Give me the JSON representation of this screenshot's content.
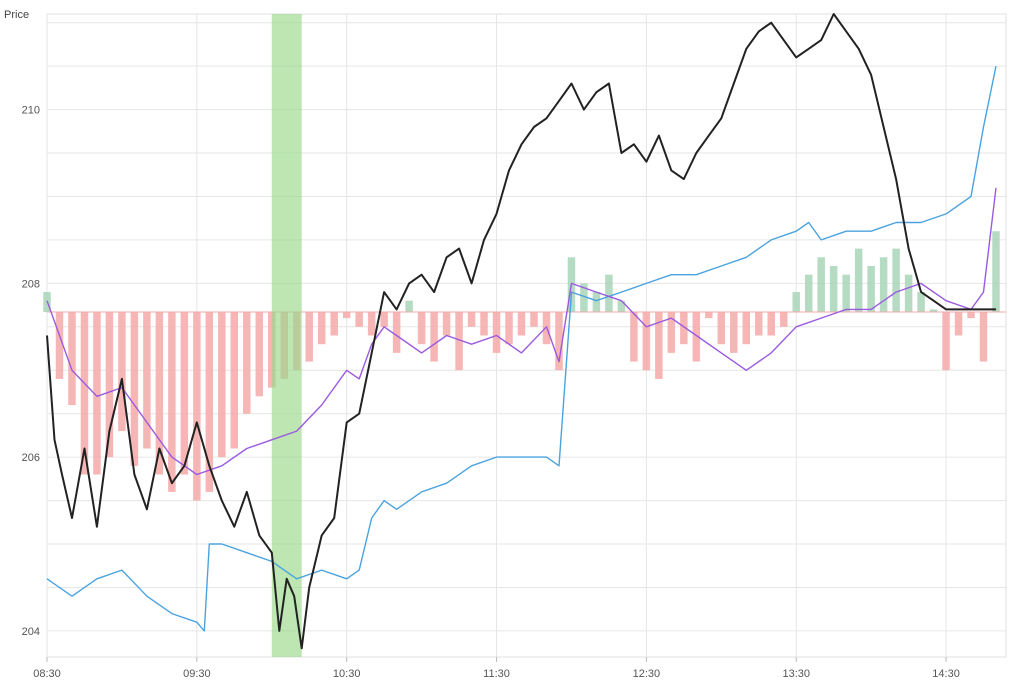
{
  "chart_data": {
    "type": "line",
    "ylabel": "Price",
    "ylim": [
      203.7,
      211.1
    ],
    "y_ticks": [
      204,
      206,
      208,
      210
    ],
    "x_ticks": [
      "08:30",
      "09:30",
      "10:30",
      "11:30",
      "12:30",
      "13:30",
      "14:30"
    ],
    "x_range_hours": [
      8.5,
      14.9
    ],
    "grid": true,
    "baseline": 207.67,
    "highlight_band": {
      "start": "10:00",
      "end": "10:12",
      "color": "#9ad88a"
    },
    "colors": {
      "price": "#222222",
      "blue": "#4aa3df",
      "purple": "#9b59e0",
      "bar_negative": "#f4a9a9",
      "bar_positive": "#a8d5b8"
    },
    "series": [
      {
        "key": "price",
        "x": [
          "08:30",
          "08:33",
          "08:36",
          "08:40",
          "08:45",
          "08:50",
          "08:55",
          "09:00",
          "09:05",
          "09:10",
          "09:15",
          "09:20",
          "09:25",
          "09:30",
          "09:35",
          "09:40",
          "09:45",
          "09:50",
          "09:55",
          "10:00",
          "10:03",
          "10:06",
          "10:09",
          "10:12",
          "10:15",
          "10:20",
          "10:25",
          "10:30",
          "10:35",
          "10:40",
          "10:45",
          "10:50",
          "10:55",
          "11:00",
          "11:05",
          "11:10",
          "11:15",
          "11:20",
          "11:25",
          "11:30",
          "11:35",
          "11:40",
          "11:45",
          "11:50",
          "11:55",
          "12:00",
          "12:05",
          "12:10",
          "12:15",
          "12:20",
          "12:25",
          "12:30",
          "12:35",
          "12:40",
          "12:45",
          "12:50",
          "12:55",
          "13:00",
          "13:05",
          "13:10",
          "13:15",
          "13:20",
          "13:25",
          "13:30",
          "13:35",
          "13:40",
          "13:45",
          "13:50",
          "13:55",
          "14:00",
          "14:05",
          "14:10",
          "14:15",
          "14:20",
          "14:25",
          "14:30",
          "14:35",
          "14:40",
          "14:42",
          "14:45",
          "14:48",
          "14:50"
        ],
        "y": [
          207.4,
          206.2,
          205.8,
          205.3,
          206.1,
          205.2,
          206.3,
          206.9,
          205.8,
          205.4,
          206.1,
          205.7,
          205.9,
          206.4,
          205.9,
          205.5,
          205.2,
          205.6,
          205.1,
          204.9,
          204.0,
          204.6,
          204.4,
          203.8,
          204.5,
          205.1,
          205.3,
          206.4,
          206.5,
          207.2,
          207.9,
          207.7,
          208.0,
          208.1,
          207.9,
          208.3,
          208.4,
          208.0,
          208.5,
          208.8,
          209.3,
          209.6,
          209.8,
          209.9,
          210.1,
          210.3,
          210.0,
          210.2,
          210.3,
          209.5,
          209.6,
          209.4,
          209.7,
          209.3,
          209.2,
          209.5,
          209.7,
          209.9,
          210.3,
          210.7,
          210.9,
          211.0,
          210.8,
          210.6,
          210.7,
          210.8,
          211.1,
          210.9,
          210.7,
          210.4,
          209.8,
          209.2,
          208.4,
          207.9,
          207.8,
          207.7,
          207.7,
          207.7,
          207.7,
          207.7,
          207.7,
          207.7
        ]
      },
      {
        "key": "blue",
        "x": [
          "08:30",
          "08:40",
          "08:50",
          "09:00",
          "09:10",
          "09:20",
          "09:30",
          "09:33",
          "09:35",
          "09:40",
          "09:50",
          "10:00",
          "10:10",
          "10:20",
          "10:30",
          "10:35",
          "10:40",
          "10:45",
          "10:50",
          "11:00",
          "11:10",
          "11:20",
          "11:30",
          "11:40",
          "11:50",
          "11:55",
          "12:00",
          "12:10",
          "12:20",
          "12:30",
          "12:40",
          "12:50",
          "13:00",
          "13:10",
          "13:20",
          "13:30",
          "13:35",
          "13:40",
          "13:50",
          "14:00",
          "14:10",
          "14:20",
          "14:30",
          "14:40",
          "14:45",
          "14:50"
        ],
        "y": [
          204.6,
          204.4,
          204.6,
          204.7,
          204.4,
          204.2,
          204.1,
          204.0,
          205.0,
          205.0,
          204.9,
          204.8,
          204.6,
          204.7,
          204.6,
          204.7,
          205.3,
          205.5,
          205.4,
          205.6,
          205.7,
          205.9,
          206.0,
          206.0,
          206.0,
          205.9,
          207.9,
          207.8,
          207.9,
          208.0,
          208.1,
          208.1,
          208.2,
          208.3,
          208.5,
          208.6,
          208.7,
          208.5,
          208.6,
          208.6,
          208.7,
          208.7,
          208.8,
          209.0,
          209.8,
          210.5
        ]
      },
      {
        "key": "purple",
        "x": [
          "08:30",
          "08:40",
          "08:50",
          "09:00",
          "09:10",
          "09:20",
          "09:30",
          "09:40",
          "09:50",
          "10:00",
          "10:10",
          "10:20",
          "10:30",
          "10:35",
          "10:40",
          "10:45",
          "10:50",
          "11:00",
          "11:10",
          "11:20",
          "11:30",
          "11:40",
          "11:50",
          "11:55",
          "12:00",
          "12:10",
          "12:20",
          "12:30",
          "12:40",
          "12:50",
          "13:00",
          "13:10",
          "13:20",
          "13:30",
          "13:40",
          "13:50",
          "14:00",
          "14:10",
          "14:20",
          "14:30",
          "14:40",
          "14:45",
          "14:50"
        ],
        "y": [
          207.8,
          207.0,
          206.7,
          206.8,
          206.4,
          206.0,
          205.8,
          205.9,
          206.1,
          206.2,
          206.3,
          206.6,
          207.0,
          206.9,
          207.3,
          207.5,
          207.4,
          207.2,
          207.4,
          207.3,
          207.4,
          207.2,
          207.5,
          207.1,
          208.0,
          207.9,
          207.8,
          207.5,
          207.6,
          207.4,
          207.2,
          207.0,
          207.2,
          207.5,
          207.6,
          207.7,
          207.7,
          207.9,
          208.0,
          207.8,
          207.7,
          207.9,
          209.1
        ]
      }
    ],
    "bars": {
      "x": [
        "08:30",
        "08:35",
        "08:40",
        "08:45",
        "08:50",
        "08:55",
        "09:00",
        "09:05",
        "09:10",
        "09:15",
        "09:20",
        "09:25",
        "09:30",
        "09:35",
        "09:40",
        "09:45",
        "09:50",
        "09:55",
        "10:00",
        "10:05",
        "10:10",
        "10:15",
        "10:20",
        "10:25",
        "10:30",
        "10:35",
        "10:40",
        "10:45",
        "10:50",
        "10:55",
        "11:00",
        "11:05",
        "11:10",
        "11:15",
        "11:20",
        "11:25",
        "11:30",
        "11:35",
        "11:40",
        "11:45",
        "11:50",
        "11:55",
        "12:00",
        "12:05",
        "12:10",
        "12:15",
        "12:20",
        "12:25",
        "12:30",
        "12:35",
        "12:40",
        "12:45",
        "12:50",
        "12:55",
        "13:00",
        "13:05",
        "13:10",
        "13:15",
        "13:20",
        "13:25",
        "13:30",
        "13:35",
        "13:40",
        "13:45",
        "13:50",
        "13:55",
        "14:00",
        "14:05",
        "14:10",
        "14:15",
        "14:20",
        "14:25",
        "14:30",
        "14:35",
        "14:40",
        "14:45",
        "14:50"
      ],
      "values": [
        207.9,
        206.9,
        206.6,
        205.8,
        205.8,
        206.0,
        206.3,
        205.9,
        206.1,
        205.8,
        205.6,
        205.8,
        205.5,
        205.6,
        206.0,
        206.1,
        206.5,
        206.7,
        206.8,
        206.9,
        207.0,
        207.1,
        207.3,
        207.4,
        207.6,
        207.5,
        207.4,
        207.5,
        207.2,
        207.8,
        207.3,
        207.1,
        207.4,
        207.0,
        207.5,
        207.4,
        207.2,
        207.3,
        207.4,
        207.5,
        207.3,
        207.0,
        208.3,
        208.0,
        207.9,
        208.1,
        207.8,
        207.1,
        207.0,
        206.9,
        207.2,
        207.3,
        207.1,
        207.6,
        207.3,
        207.2,
        207.3,
        207.4,
        207.4,
        207.5,
        207.9,
        208.1,
        208.3,
        208.2,
        208.1,
        208.4,
        208.2,
        208.3,
        208.4,
        208.1,
        207.9,
        207.7,
        207.0,
        207.4,
        207.6,
        207.1,
        208.6
      ]
    }
  }
}
